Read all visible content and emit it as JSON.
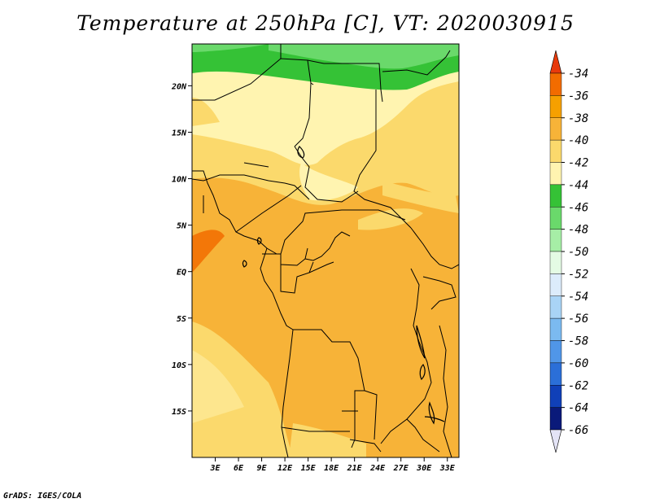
{
  "title": "Temperature at 250hPa [C], VT: 2020030915",
  "footer": "GrADS: IGES/COLA",
  "chart_data": {
    "type": "heatmap",
    "title": "Temperature at 250hPa [C], VT: 2020030915",
    "variable": "Temperature",
    "level": "250hPa",
    "units": "C",
    "valid_time": "2020030915",
    "x_axis": {
      "range": [
        0,
        34.5
      ],
      "ticks": [
        3,
        6,
        9,
        12,
        15,
        18,
        21,
        24,
        27,
        30,
        33
      ],
      "tick_labels": [
        "3E",
        "6E",
        "9E",
        "12E",
        "15E",
        "18E",
        "21E",
        "24E",
        "27E",
        "30E",
        "33E"
      ]
    },
    "y_axis": {
      "range": [
        -20,
        24.5
      ],
      "ticks": [
        20,
        15,
        10,
        5,
        0,
        -5,
        -10,
        -15
      ],
      "tick_labels": [
        "20N",
        "15N",
        "10N",
        "5N",
        "EQ",
        "5S",
        "10S",
        "15S"
      ]
    },
    "colorbar": {
      "levels": [
        -34,
        -36,
        -38,
        -40,
        -42,
        -44,
        -46,
        -48,
        -50,
        -52,
        -54,
        -56,
        -58,
        -60,
        -62,
        -64,
        -66
      ],
      "level_labels": [
        "-34",
        "-36",
        "-38",
        "-40",
        "-42",
        "-44",
        "-46",
        "-48",
        "-50",
        "-52",
        "-54",
        "-56",
        "-58",
        "-60",
        "-62",
        "-64",
        "-66"
      ],
      "colors": [
        "#ef4a10",
        "#f26c00",
        "#f6a000",
        "#f7b338",
        "#fbd96c",
        "#fff4b0",
        "#35c236",
        "#6ad96b",
        "#a6eea6",
        "#e4fbe4",
        "#dcecfb",
        "#a9d4f6",
        "#7bbaf0",
        "#5096e8",
        "#2b6fd8",
        "#1040b8",
        "#0a1a7a"
      ],
      "top_arrow_color": "#e83a0c",
      "bottom_arrow_color": "#e4e4f6"
    },
    "grid": false,
    "features": "country borders and coastlines of central Africa"
  }
}
